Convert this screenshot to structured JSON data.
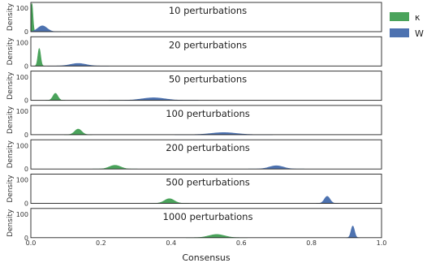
{
  "chart_data": {
    "type": "area",
    "xlabel": "Consensus",
    "ylabel": "Density",
    "xlim": [
      0,
      1
    ],
    "ylim": [
      0,
      125
    ],
    "x_ticks": [
      "0.0",
      "0.2",
      "0.4",
      "0.6",
      "0.8",
      "1.0"
    ],
    "y_ticks": [
      "0",
      "100"
    ],
    "legend_position": "top-right",
    "series": [
      {
        "name": "κ",
        "color": "#4aa35b"
      },
      {
        "name": "W",
        "color": "#4d72b0"
      }
    ],
    "panels": [
      {
        "title": "10 perturbations",
        "distributions": {
          "κ": {
            "mean": 0.003,
            "sd": 0.003,
            "peak": 120
          },
          "W": {
            "mean": 0.033,
            "sd": 0.013,
            "peak": 25
          }
        }
      },
      {
        "title": "20 perturbations",
        "distributions": {
          "κ": {
            "mean": 0.024,
            "sd": 0.004,
            "peak": 75
          },
          "W": {
            "mean": 0.135,
            "sd": 0.022,
            "peak": 11
          }
        }
      },
      {
        "title": "50 perturbations",
        "distributions": {
          "κ": {
            "mean": 0.07,
            "sd": 0.007,
            "peak": 30
          },
          "W": {
            "mean": 0.35,
            "sd": 0.032,
            "peak": 11
          }
        }
      },
      {
        "title": "100 perturbations",
        "distributions": {
          "κ": {
            "mean": 0.135,
            "sd": 0.01,
            "peak": 24
          },
          "W": {
            "mean": 0.55,
            "sd": 0.035,
            "peak": 9
          }
        }
      },
      {
        "title": "200 perturbations",
        "distributions": {
          "κ": {
            "mean": 0.24,
            "sd": 0.016,
            "peak": 16
          },
          "W": {
            "mean": 0.7,
            "sd": 0.02,
            "peak": 14
          }
        }
      },
      {
        "title": "500 perturbations",
        "distributions": {
          "κ": {
            "mean": 0.395,
            "sd": 0.014,
            "peak": 20
          },
          "W": {
            "mean": 0.845,
            "sd": 0.008,
            "peak": 30
          }
        }
      },
      {
        "title": "1000 perturbations",
        "distributions": {
          "κ": {
            "mean": 0.53,
            "sd": 0.022,
            "peak": 14
          },
          "W": {
            "mean": 0.918,
            "sd": 0.005,
            "peak": 50
          }
        }
      }
    ]
  }
}
